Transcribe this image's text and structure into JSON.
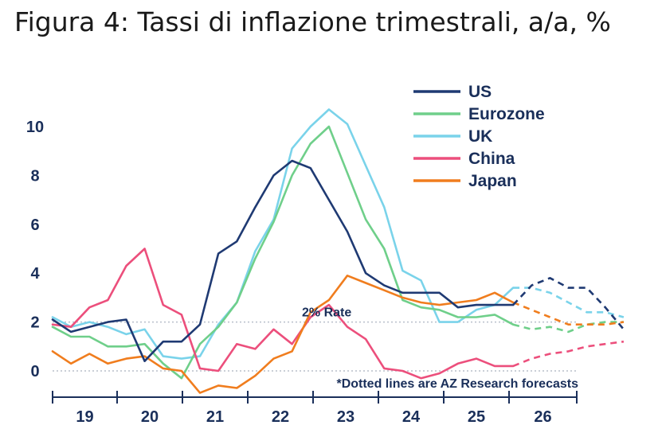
{
  "title": "Figura 4: Tassi di inflazione trimestrali, a/a, %",
  "chart_data": {
    "type": "line",
    "title": "Figura 4: Tassi di inflazione trimestrali, a/a, %",
    "xlabel": "",
    "ylabel": "",
    "x_tick_labels": [
      "19",
      "20",
      "21",
      "22",
      "23",
      "24",
      "25",
      "26"
    ],
    "y_tick_labels": [
      "0",
      "2",
      "4",
      "6",
      "8",
      "10"
    ],
    "xlim": [
      2019.0,
      2027.0
    ],
    "ylim": [
      -1,
      11
    ],
    "grid": false,
    "legend_position": "top-right",
    "x": [
      2019.0,
      2019.25,
      2019.5,
      2019.75,
      2020.0,
      2020.25,
      2020.5,
      2020.75,
      2021.0,
      2021.25,
      2021.5,
      2021.75,
      2022.0,
      2022.25,
      2022.5,
      2022.75,
      2023.0,
      2023.25,
      2023.5,
      2023.75,
      2024.0,
      2024.25,
      2024.5,
      2024.75,
      2025.0,
      2025.25,
      2025.5,
      2025.75,
      2026.0,
      2026.25,
      2026.5,
      2026.75
    ],
    "forecast_start_x": 2025.25,
    "series": [
      {
        "name": "US",
        "color": "#1f3a73",
        "values": [
          2.1,
          1.6,
          1.8,
          2.0,
          2.1,
          0.4,
          1.2,
          1.2,
          1.9,
          4.8,
          5.3,
          6.7,
          8.0,
          8.6,
          8.3,
          7.0,
          5.7,
          4.0,
          3.5,
          3.2,
          3.2,
          3.2,
          2.6,
          2.7,
          2.7,
          2.7,
          3.5,
          3.8,
          3.4,
          3.4,
          2.6,
          1.7
        ]
      },
      {
        "name": "Eurozone",
        "color": "#6fcf8a",
        "values": [
          1.8,
          1.4,
          1.4,
          1.0,
          1.0,
          1.1,
          0.3,
          -0.3,
          1.1,
          1.8,
          2.8,
          4.6,
          6.1,
          8.0,
          9.3,
          10.0,
          8.1,
          6.2,
          5.0,
          2.9,
          2.6,
          2.5,
          2.2,
          2.2,
          2.3,
          1.9,
          1.7,
          1.8,
          1.6,
          1.9,
          2.0,
          2.0
        ]
      },
      {
        "name": "UK",
        "color": "#7ad3ea",
        "values": [
          2.2,
          1.8,
          2.0,
          1.8,
          1.5,
          1.7,
          0.6,
          0.5,
          0.6,
          1.9,
          2.8,
          4.9,
          6.2,
          9.1,
          10.0,
          10.7,
          10.1,
          8.4,
          6.7,
          4.1,
          3.7,
          2.0,
          2.0,
          2.5,
          2.7,
          3.4,
          3.4,
          3.2,
          2.8,
          2.4,
          2.4,
          2.2
        ]
      },
      {
        "name": "China",
        "color": "#ec4f7c",
        "values": [
          1.9,
          1.8,
          2.6,
          2.9,
          4.3,
          5.0,
          2.7,
          2.3,
          0.1,
          0.0,
          1.1,
          0.9,
          1.7,
          1.1,
          2.2,
          2.7,
          1.8,
          1.3,
          0.1,
          0.0,
          -0.3,
          -0.1,
          0.3,
          0.5,
          0.2,
          0.2,
          0.5,
          0.7,
          0.8,
          1.0,
          1.1,
          1.2
        ]
      },
      {
        "name": "Japan",
        "color": "#f07d1e",
        "values": [
          0.8,
          0.3,
          0.7,
          0.3,
          0.5,
          0.6,
          0.1,
          0.0,
          -0.9,
          -0.6,
          -0.7,
          -0.2,
          0.5,
          0.8,
          2.4,
          2.9,
          3.9,
          3.6,
          3.3,
          3.0,
          2.8,
          2.7,
          2.8,
          2.9,
          3.2,
          2.8,
          2.5,
          2.2,
          1.9,
          1.9,
          1.9,
          2.0
        ]
      }
    ],
    "annotations": [
      {
        "text": "2% Rate",
        "x": 2022.6,
        "y": 2.0
      },
      {
        "text": "*Dotted lines are AZ Research forecasts",
        "x": 2025.05,
        "y": -0.5
      }
    ],
    "reference_lines": [
      {
        "y": 2.0,
        "style": "dotted",
        "color": "#b8bfca"
      },
      {
        "y": 0.0,
        "style": "dotted",
        "color": "#b8bfca"
      }
    ]
  }
}
